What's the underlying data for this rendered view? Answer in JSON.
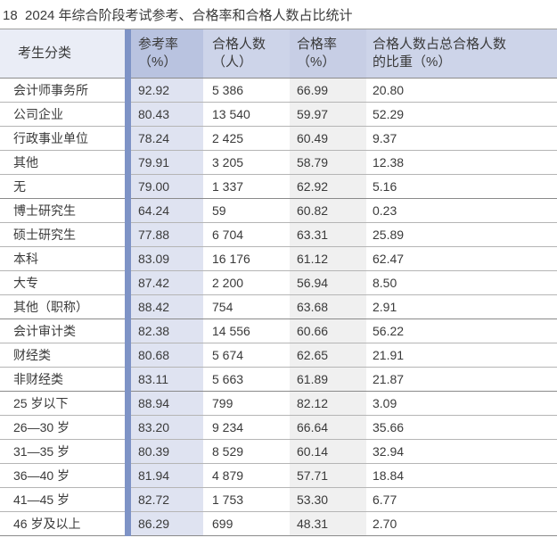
{
  "page": {
    "title": "18  2024 年综合阶段考试参考、合格率和合格人数占比统计"
  },
  "colors": {
    "accent_bar": "#7e93c6",
    "header_bg": "#cdd4e9",
    "header_bg_category": "#eaedf6",
    "header_bg_ref_rate": "#b9c3e0",
    "header_bg_pass_rate": "#c7cee5",
    "body_ref_rate_bg": "#dfe3f1",
    "body_pass_rate_bg": "#f0f0f0",
    "row_border": "#b5b5b5",
    "group_border": "#8a8a8a",
    "text": "#3a3a3a"
  },
  "table": {
    "headers": [
      {
        "line1": "考生分类",
        "line2": ""
      },
      {
        "line1": "参考率",
        "line2": "（%）"
      },
      {
        "line1": "合格人数",
        "line2": "（人）"
      },
      {
        "line1": "合格率",
        "line2": "（%）"
      },
      {
        "line1": "合格人数占总合格人数",
        "line2": "的比重（%）"
      }
    ],
    "rows": [
      {
        "category": "会计师事务所",
        "ref_rate": "92.92",
        "pass_count": "5 386",
        "pass_rate": "66.99",
        "share": "20.80"
      },
      {
        "category": "公司企业",
        "ref_rate": "80.43",
        "pass_count": "13 540",
        "pass_rate": "59.97",
        "share": "52.29"
      },
      {
        "category": "行政事业单位",
        "ref_rate": "78.24",
        "pass_count": "2 425",
        "pass_rate": "60.49",
        "share": "9.37"
      },
      {
        "category": "其他",
        "ref_rate": "79.91",
        "pass_count": "3 205",
        "pass_rate": "58.79",
        "share": "12.38"
      },
      {
        "category": "无",
        "ref_rate": "79.00",
        "pass_count": "1 337",
        "pass_rate": "62.92",
        "share": "5.16"
      },
      {
        "category": "博士研究生",
        "ref_rate": "64.24",
        "pass_count": "59",
        "pass_rate": "60.82",
        "share": "0.23"
      },
      {
        "category": "硕士研究生",
        "ref_rate": "77.88",
        "pass_count": "6 704",
        "pass_rate": "63.31",
        "share": "25.89"
      },
      {
        "category": "本科",
        "ref_rate": "83.09",
        "pass_count": "16 176",
        "pass_rate": "61.12",
        "share": "62.47"
      },
      {
        "category": "大专",
        "ref_rate": "87.42",
        "pass_count": "2 200",
        "pass_rate": "56.94",
        "share": "8.50"
      },
      {
        "category": "其他（职称）",
        "ref_rate": "88.42",
        "pass_count": "754",
        "pass_rate": "63.68",
        "share": "2.91"
      },
      {
        "category": "会计审计类",
        "ref_rate": "82.38",
        "pass_count": "14 556",
        "pass_rate": "60.66",
        "share": "56.22"
      },
      {
        "category": "财经类",
        "ref_rate": "80.68",
        "pass_count": "5 674",
        "pass_rate": "62.65",
        "share": "21.91"
      },
      {
        "category": "非财经类",
        "ref_rate": "83.11",
        "pass_count": "5 663",
        "pass_rate": "61.89",
        "share": "21.87"
      },
      {
        "category": "25 岁以下",
        "ref_rate": "88.94",
        "pass_count": "799",
        "pass_rate": "82.12",
        "share": "3.09"
      },
      {
        "category": "26—30 岁",
        "ref_rate": "83.20",
        "pass_count": "9 234",
        "pass_rate": "66.64",
        "share": "35.66"
      },
      {
        "category": "31—35 岁",
        "ref_rate": "80.39",
        "pass_count": "8 529",
        "pass_rate": "60.14",
        "share": "32.94"
      },
      {
        "category": "36—40 岁",
        "ref_rate": "81.94",
        "pass_count": "4 879",
        "pass_rate": "57.71",
        "share": "18.84"
      },
      {
        "category": "41—45 岁",
        "ref_rate": "82.72",
        "pass_count": "1 753",
        "pass_rate": "53.30",
        "share": "6.77"
      },
      {
        "category": "46 岁及以上",
        "ref_rate": "86.29",
        "pass_count": "699",
        "pass_rate": "48.31",
        "share": "2.70"
      }
    ]
  },
  "chart_data": {
    "type": "table",
    "title": "18  2024 年综合阶段考试参考、合格率和合格人数占比统计",
    "columns": [
      "考生分类",
      "参考率（%）",
      "合格人数（人）",
      "合格率（%）",
      "合格人数占总合格人数的比重（%）"
    ],
    "rows": [
      [
        "会计师事务所",
        92.92,
        5386,
        66.99,
        20.8
      ],
      [
        "公司企业",
        80.43,
        13540,
        59.97,
        52.29
      ],
      [
        "行政事业单位",
        78.24,
        2425,
        60.49,
        9.37
      ],
      [
        "其他",
        79.91,
        3205,
        58.79,
        12.38
      ],
      [
        "无",
        79.0,
        1337,
        62.92,
        5.16
      ],
      [
        "博士研究生",
        64.24,
        59,
        60.82,
        0.23
      ],
      [
        "硕士研究生",
        77.88,
        6704,
        63.31,
        25.89
      ],
      [
        "本科",
        83.09,
        16176,
        61.12,
        62.47
      ],
      [
        "大专",
        87.42,
        2200,
        56.94,
        8.5
      ],
      [
        "其他（职称）",
        88.42,
        754,
        63.68,
        2.91
      ],
      [
        "会计审计类",
        82.38,
        14556,
        60.66,
        56.22
      ],
      [
        "财经类",
        80.68,
        5674,
        62.65,
        21.91
      ],
      [
        "非财经类",
        83.11,
        5663,
        61.89,
        21.87
      ],
      [
        "25 岁以下",
        88.94,
        799,
        82.12,
        3.09
      ],
      [
        "26—30 岁",
        83.2,
        9234,
        66.64,
        35.66
      ],
      [
        "31—35 岁",
        80.39,
        8529,
        60.14,
        32.94
      ],
      [
        "36—40 岁",
        81.94,
        4879,
        57.71,
        18.84
      ],
      [
        "41—45 岁",
        82.72,
        1753,
        53.3,
        6.77
      ],
      [
        "46 岁及以上",
        86.29,
        699,
        48.31,
        2.7
      ]
    ]
  }
}
